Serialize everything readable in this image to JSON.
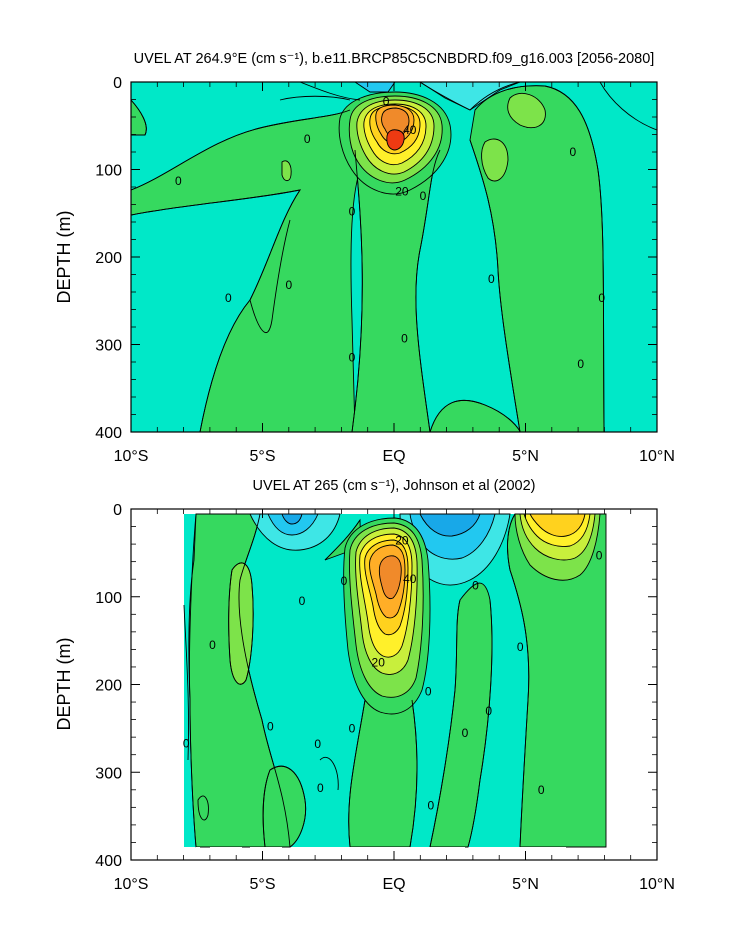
{
  "chart_data": [
    {
      "type": "contour",
      "title": "UVEL AT 264.9°E (cm s⁻¹), b.e11.BRCP85C5CNBDRD.f09_g16.003 [2056-2080]",
      "ylabel": "DEPTH (m)",
      "xlabel": "",
      "x_ticks": [
        "10°S",
        "5°S",
        "EQ",
        "5°N",
        "10°N"
      ],
      "y_ticks": [
        0,
        100,
        200,
        300,
        400
      ],
      "xlim": [
        -10,
        10
      ],
      "ylim": [
        400,
        0
      ],
      "contour_interval": 10,
      "contour_labels": [
        {
          "text": "0",
          "x": -8.2,
          "y": 113
        },
        {
          "text": "0",
          "x": -6.3,
          "y": 247
        },
        {
          "text": "0",
          "x": -4.0,
          "y": 232
        },
        {
          "text": "0",
          "x": -3.3,
          "y": 65
        },
        {
          "text": "0",
          "x": -1.6,
          "y": 148
        },
        {
          "text": "0",
          "x": -1.6,
          "y": 315
        },
        {
          "text": "0",
          "x": -0.3,
          "y": 22
        },
        {
          "text": "0",
          "x": 0.4,
          "y": 293
        },
        {
          "text": "0",
          "x": 1.1,
          "y": 130
        },
        {
          "text": "0",
          "x": 3.7,
          "y": 225
        },
        {
          "text": "0",
          "x": 6.8,
          "y": 80
        },
        {
          "text": "0",
          "x": 7.1,
          "y": 322
        },
        {
          "text": "0",
          "x": 7.9,
          "y": 247
        },
        {
          "text": "20",
          "x": 0.3,
          "y": 125
        },
        {
          "text": "40",
          "x": 0.6,
          "y": 55
        }
      ],
      "features": [
        {
          "kind": "jet_core",
          "x": 0.0,
          "y": 72,
          "max_value": 70
        },
        {
          "kind": "westward_surface",
          "x_range": [
            -1,
            3
          ],
          "y_range": [
            0,
            40
          ],
          "min_value": -20
        },
        {
          "kind": "positive_patch",
          "x": 4.8,
          "y": 25,
          "value": 10
        }
      ]
    },
    {
      "type": "contour",
      "title": "UVEL AT 265 (cm s⁻¹), Johnson et al (2002)",
      "ylabel": "DEPTH (m)",
      "xlabel": "",
      "x_ticks": [
        "10°S",
        "5°S",
        "EQ",
        "5°N",
        "10°N"
      ],
      "y_ticks": [
        0,
        100,
        200,
        300,
        400
      ],
      "xlim": [
        -10,
        10
      ],
      "ylim": [
        400,
        0
      ],
      "data_extent_x": [
        -8,
        8
      ],
      "contour_interval": 10,
      "contour_labels": [
        {
          "text": "0",
          "x": -7.9,
          "y": 267
        },
        {
          "text": "0",
          "x": -6.9,
          "y": 155
        },
        {
          "text": "0",
          "x": -4.7,
          "y": 248
        },
        {
          "text": "0",
          "x": -3.5,
          "y": 105
        },
        {
          "text": "0",
          "x": -2.9,
          "y": 268
        },
        {
          "text": "0",
          "x": -2.8,
          "y": 318
        },
        {
          "text": "0",
          "x": -1.9,
          "y": 82
        },
        {
          "text": "0",
          "x": -1.6,
          "y": 250
        },
        {
          "text": "0",
          "x": 1.3,
          "y": 208
        },
        {
          "text": "0",
          "x": 1.4,
          "y": 338
        },
        {
          "text": "0",
          "x": 2.7,
          "y": 255
        },
        {
          "text": "0",
          "x": 3.6,
          "y": 230
        },
        {
          "text": "0",
          "x": 3.1,
          "y": 87
        },
        {
          "text": "0",
          "x": 4.8,
          "y": 157
        },
        {
          "text": "0",
          "x": 5.6,
          "y": 320
        },
        {
          "text": "0",
          "x": 7.8,
          "y": 53
        },
        {
          "text": "20",
          "x": 0.3,
          "y": 36
        },
        {
          "text": "20",
          "x": -0.6,
          "y": 175
        },
        {
          "text": "40",
          "x": 0.6,
          "y": 80
        }
      ],
      "features": [
        {
          "kind": "jet_core",
          "x": -0.1,
          "y": 75,
          "max_value": 60
        },
        {
          "kind": "westward_surface",
          "x_range": [
            1.0,
            3.5
          ],
          "y_range": [
            0,
            40
          ],
          "min_value": -30
        },
        {
          "kind": "westward_surface",
          "x_range": [
            -4.5,
            -3.0
          ],
          "y_range": [
            0,
            30
          ],
          "min_value": -30
        },
        {
          "kind": "positive_patch",
          "x": 6.2,
          "y": 25,
          "value": 30
        }
      ]
    }
  ]
}
